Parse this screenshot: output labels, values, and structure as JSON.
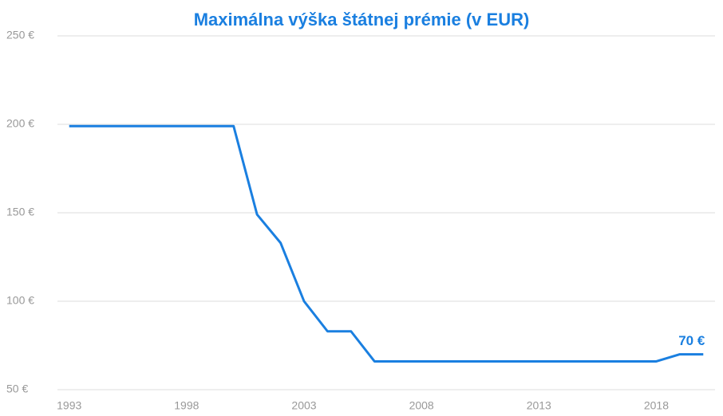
{
  "chart_data": {
    "type": "line",
    "title": "Maximálna výška štátnej prémie (v EUR)",
    "x": [
      1993,
      1994,
      1995,
      1996,
      1997,
      1998,
      1999,
      2000,
      2001,
      2002,
      2003,
      2004,
      2005,
      2006,
      2007,
      2008,
      2009,
      2010,
      2011,
      2012,
      2013,
      2014,
      2015,
      2016,
      2017,
      2018,
      2019,
      2020
    ],
    "series": [
      {
        "name": "Maximálna výška štátnej prémie",
        "color": "#1a7fe0",
        "values": [
          199,
          199,
          199,
          199,
          199,
          199,
          199,
          199,
          149,
          133,
          100,
          83,
          83,
          66,
          66,
          66,
          66,
          66,
          66,
          66,
          66,
          66,
          66,
          66,
          66,
          66,
          70,
          70
        ]
      }
    ],
    "annotation": "70 €",
    "xlim": [
      1992.5,
      2020.5
    ],
    "xticks": [
      1993,
      1998,
      2003,
      2008,
      2013,
      2018
    ],
    "ylim": [
      50,
      250
    ],
    "yticks": [
      {
        "value": 50,
        "label": "50  €"
      },
      {
        "value": 100,
        "label": "100  €"
      },
      {
        "value": 150,
        "label": "150  €"
      },
      {
        "value": 200,
        "label": "200  €"
      },
      {
        "value": 250,
        "label": "250  €"
      }
    ],
    "grid": true
  }
}
